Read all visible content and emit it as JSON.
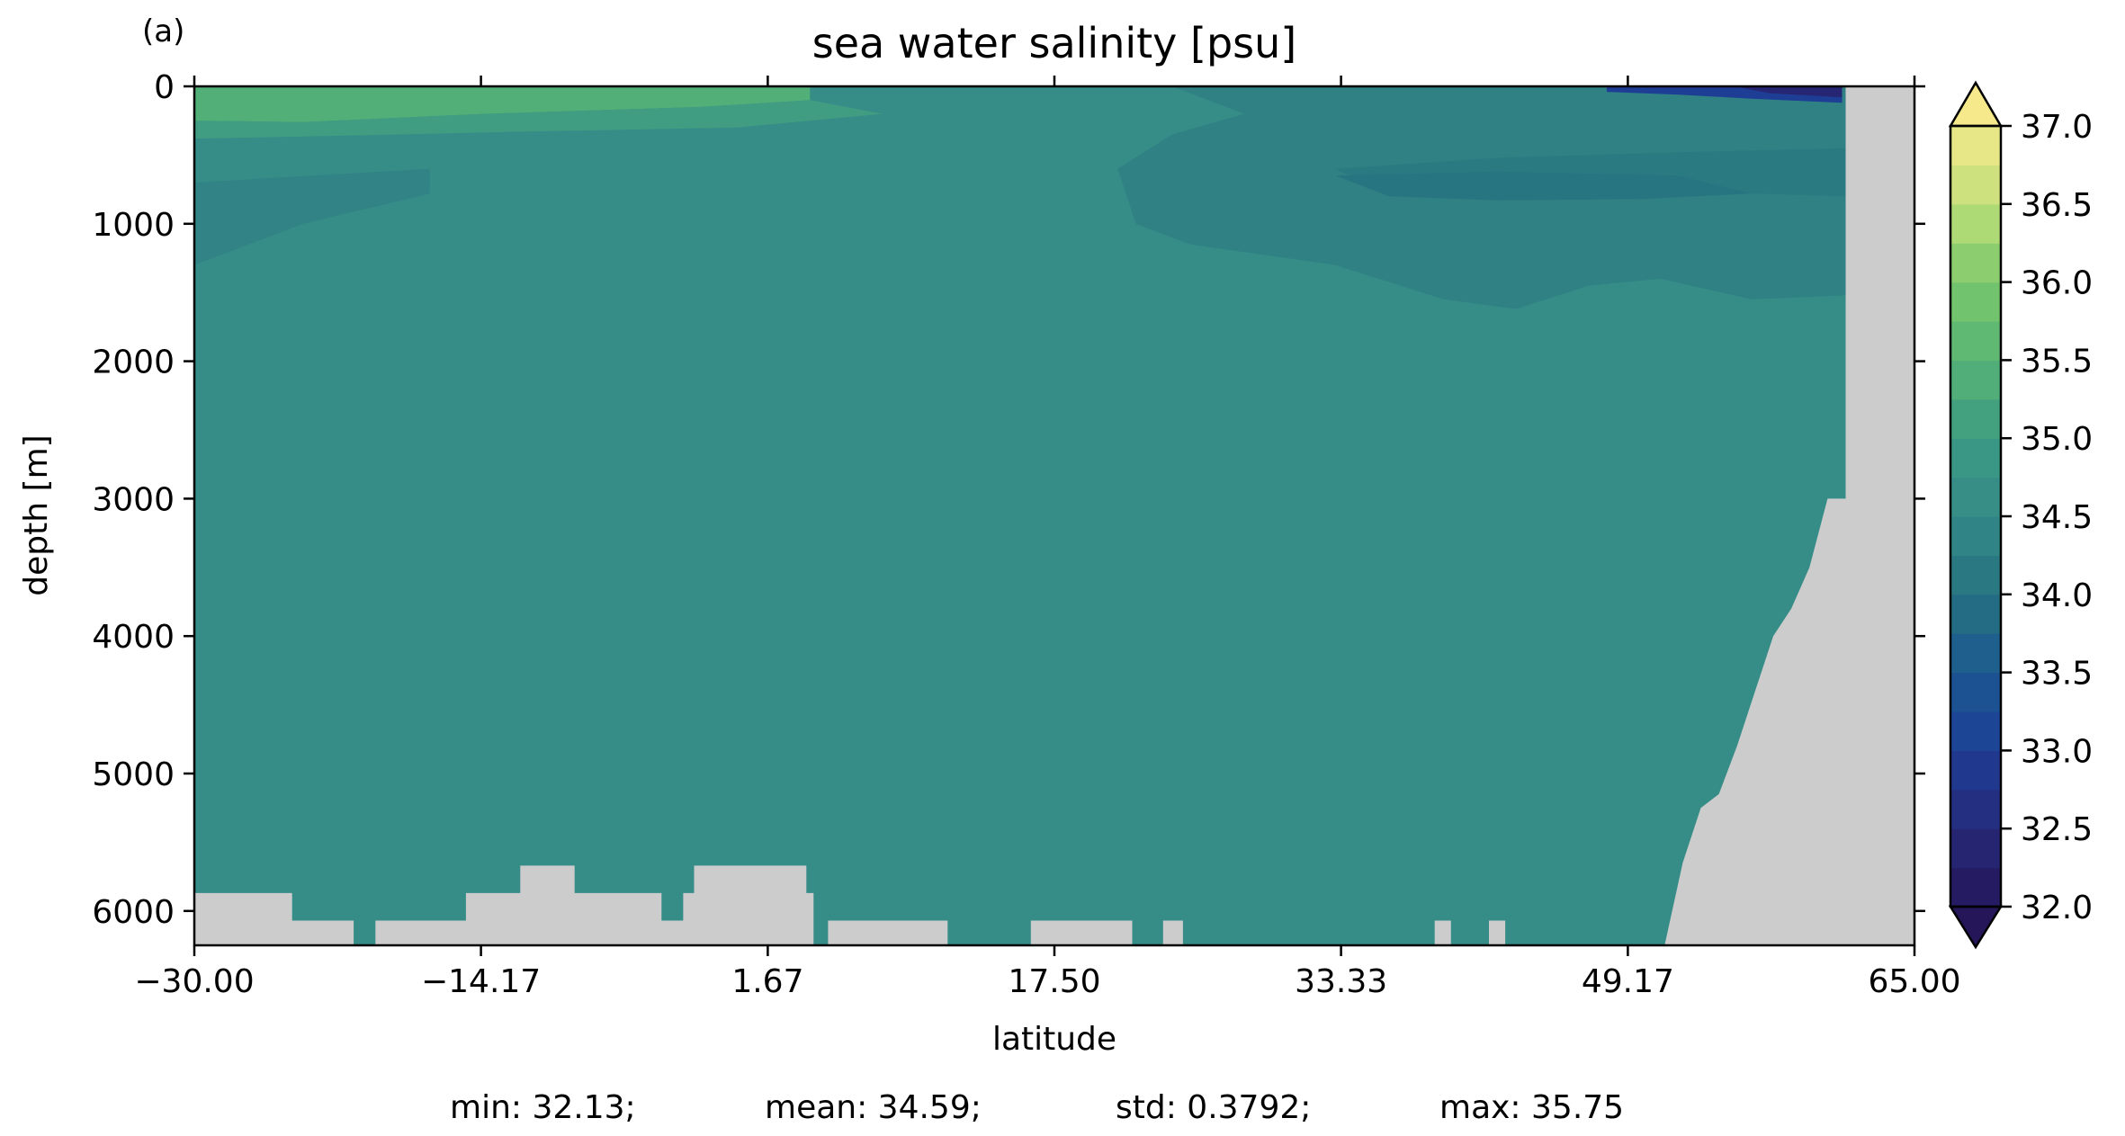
{
  "panel_label": "(a)",
  "chart_data": {
    "type": "heatmap",
    "title": "sea water salinity [psu]",
    "xlabel": "latitude",
    "ylabel": "depth [m]",
    "xlim": [
      -30,
      65
    ],
    "ylim": [
      6250,
      0
    ],
    "x_ticks": [
      -30,
      -14.17,
      1.67,
      17.5,
      33.33,
      49.17,
      65
    ],
    "x_tick_labels": [
      "−30.00",
      "−14.17",
      "1.67",
      "17.50",
      "33.33",
      "49.17",
      "65.00"
    ],
    "y_ticks": [
      0,
      1000,
      2000,
      3000,
      4000,
      5000,
      6000
    ],
    "y_tick_labels": [
      "0",
      "1000",
      "2000",
      "3000",
      "4000",
      "5000",
      "6000"
    ],
    "background_value": 34.55,
    "regions": [
      {
        "value": 35.4,
        "outline": [
          [
            -30,
            0
          ],
          [
            -20,
            0
          ],
          [
            -10,
            0
          ],
          [
            0,
            0
          ],
          [
            4,
            0
          ],
          [
            4,
            100
          ],
          [
            -2,
            150
          ],
          [
            -14,
            200
          ],
          [
            -24,
            260
          ],
          [
            -30,
            250
          ]
        ]
      },
      {
        "value": 35.05,
        "outline": [
          [
            -30,
            250
          ],
          [
            -24,
            260
          ],
          [
            -14,
            200
          ],
          [
            -2,
            150
          ],
          [
            4,
            100
          ],
          [
            8,
            200
          ],
          [
            0,
            300
          ],
          [
            -12,
            330
          ],
          [
            -22,
            360
          ],
          [
            -30,
            380
          ]
        ]
      },
      {
        "value": 34.35,
        "outline": [
          [
            -30,
            700
          ],
          [
            -17,
            600
          ],
          [
            -17,
            780
          ],
          [
            -24,
            1000
          ],
          [
            -28,
            1200
          ],
          [
            -30,
            1300
          ]
        ]
      },
      {
        "value": 34.3,
        "outline": [
          [
            24,
            0
          ],
          [
            61.2,
            0
          ],
          [
            61.2,
            1520
          ],
          [
            56,
            1550
          ],
          [
            51,
            1400
          ],
          [
            47,
            1450
          ],
          [
            43,
            1620
          ],
          [
            39,
            1550
          ],
          [
            33,
            1300
          ],
          [
            25,
            1150
          ],
          [
            22,
            1000
          ],
          [
            21,
            600
          ],
          [
            24,
            350
          ],
          [
            28,
            200
          ]
        ]
      },
      {
        "value": 34.15,
        "outline": [
          [
            33,
            600
          ],
          [
            42,
            520
          ],
          [
            52,
            480
          ],
          [
            61.2,
            450
          ],
          [
            61.2,
            800
          ],
          [
            56,
            780
          ],
          [
            50,
            720
          ],
          [
            42,
            760
          ],
          [
            36,
            780
          ]
        ]
      },
      {
        "value": 34.05,
        "outline": [
          [
            33,
            650
          ],
          [
            42,
            620
          ],
          [
            52,
            650
          ],
          [
            56,
            780
          ],
          [
            50,
            820
          ],
          [
            42,
            830
          ],
          [
            36,
            800
          ]
        ]
      },
      {
        "value": 33.0,
        "outline": [
          [
            48,
            0
          ],
          [
            61,
            0
          ],
          [
            61,
            120
          ],
          [
            56,
            90
          ],
          [
            52,
            60
          ],
          [
            48,
            40
          ]
        ]
      },
      {
        "value": 32.4,
        "outline": [
          [
            55,
            0
          ],
          [
            61,
            0
          ],
          [
            61,
            80
          ],
          [
            57,
            50
          ]
        ]
      }
    ],
    "land": [
      {
        "outline": [
          [
            61.2,
            6250
          ],
          [
            61.2,
            0
          ],
          [
            65,
            0
          ],
          [
            65,
            6250
          ]
        ]
      },
      {
        "outline": [
          [
            51.2,
            6250
          ],
          [
            51.7,
            5950
          ],
          [
            52.2,
            5650
          ],
          [
            53.2,
            5250
          ],
          [
            54.2,
            5150
          ],
          [
            55.2,
            4800
          ],
          [
            56.2,
            4400
          ],
          [
            57.2,
            4000
          ],
          [
            58.2,
            3800
          ],
          [
            59.2,
            3500
          ],
          [
            60.2,
            3000
          ],
          [
            60.5,
            3000
          ],
          [
            61.2,
            3000
          ],
          [
            61.2,
            6250
          ]
        ]
      },
      {
        "outline": [
          [
            -30,
            6250
          ],
          [
            -30,
            5870
          ],
          [
            -24.6,
            5870
          ],
          [
            -24.6,
            6070
          ],
          [
            -21.2,
            6070
          ],
          [
            -21.2,
            6250
          ]
        ]
      },
      {
        "outline": [
          [
            -20,
            6250
          ],
          [
            -20,
            6070
          ],
          [
            -15,
            6070
          ],
          [
            -15,
            5870
          ],
          [
            -12,
            5870
          ],
          [
            -12,
            5670
          ],
          [
            -9,
            5670
          ],
          [
            -9,
            5870
          ],
          [
            -4.2,
            5870
          ],
          [
            -4.2,
            6070
          ],
          [
            -3,
            6070
          ],
          [
            -3,
            5870
          ],
          [
            -2.4,
            5870
          ],
          [
            -2.4,
            5670
          ],
          [
            3.8,
            5670
          ],
          [
            3.8,
            5870
          ],
          [
            4.2,
            5870
          ],
          [
            4.2,
            6250
          ]
        ]
      },
      {
        "outline": [
          [
            5,
            6250
          ],
          [
            5,
            6070
          ],
          [
            11.6,
            6070
          ],
          [
            11.6,
            6250
          ]
        ]
      },
      {
        "outline": [
          [
            16.2,
            6250
          ],
          [
            16.2,
            6070
          ],
          [
            21.8,
            6070
          ],
          [
            21.8,
            6250
          ]
        ]
      },
      {
        "outline": [
          [
            23.5,
            6250
          ],
          [
            23.5,
            6070
          ],
          [
            24.6,
            6070
          ],
          [
            24.6,
            6250
          ]
        ]
      },
      {
        "outline": [
          [
            38.5,
            6250
          ],
          [
            38.5,
            6070
          ],
          [
            39.4,
            6070
          ],
          [
            39.4,
            6250
          ]
        ]
      },
      {
        "outline": [
          [
            41.5,
            6250
          ],
          [
            41.5,
            6070
          ],
          [
            42.4,
            6070
          ],
          [
            42.4,
            6250
          ]
        ]
      }
    ],
    "colorbar": {
      "vmin": 32.0,
      "vmax": 37.0,
      "step": 0.25,
      "extend": "both",
      "ticks": [
        32.0,
        32.5,
        33.0,
        33.5,
        34.0,
        34.5,
        35.0,
        35.5,
        36.0,
        36.5,
        37.0
      ],
      "tick_labels": [
        "32.0",
        "32.5",
        "33.0",
        "33.5",
        "34.0",
        "34.5",
        "35.0",
        "35.5",
        "36.0",
        "36.5",
        "37.0"
      ],
      "colormap": [
        "#25165a",
        "#262a7a",
        "#1e3e96",
        "#1b5891",
        "#267380",
        "#358a87",
        "#3d9b84",
        "#57b474",
        "#7bc86b",
        "#bfe07a",
        "#f6e98c"
      ]
    },
    "stats": {
      "min": "min: 32.13;",
      "mean": "mean: 34.59;",
      "std": "std: 0.3792;",
      "max": "max: 35.75"
    }
  }
}
